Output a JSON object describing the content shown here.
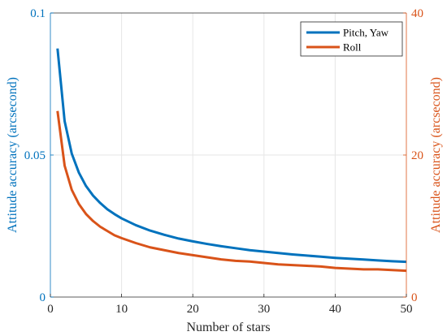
{
  "chart_data": {
    "type": "line",
    "xlabel": "Number of stars",
    "ylabel_left": "Attitude accuracy (arcsecond)",
    "ylabel_right": "Attitude accuracy (arcsecond)",
    "xlim": [
      0,
      50
    ],
    "ylim_left": [
      0,
      0.1
    ],
    "ylim_right": [
      0,
      40
    ],
    "x_ticks": [
      "0",
      "10",
      "20",
      "30",
      "40",
      "50"
    ],
    "y_left_ticks": [
      "0",
      "0.05",
      "0.1"
    ],
    "y_right_ticks": [
      "0",
      "20",
      "40"
    ],
    "grid": true,
    "legend_position": "top-right",
    "colors": {
      "left_axis": "#0072BD",
      "right_axis": "#D95319"
    },
    "series": [
      {
        "name": "Pitch, Yaw",
        "axis": "left",
        "color": "#0072BD",
        "x": [
          1,
          2,
          3,
          4,
          5,
          6,
          7,
          8,
          9,
          10,
          12,
          14,
          16,
          18,
          20,
          22,
          24,
          26,
          28,
          30,
          32,
          34,
          36,
          38,
          40,
          42,
          44,
          46,
          48,
          50
        ],
        "y": [
          0.0875,
          0.0619,
          0.0505,
          0.0438,
          0.0391,
          0.0357,
          0.0331,
          0.0309,
          0.0292,
          0.0277,
          0.0253,
          0.0234,
          0.0219,
          0.0206,
          0.0196,
          0.0187,
          0.0179,
          0.0172,
          0.0165,
          0.016,
          0.0155,
          0.015,
          0.0146,
          0.0142,
          0.0138,
          0.0135,
          0.0132,
          0.0129,
          0.0126,
          0.0124
        ]
      },
      {
        "name": "Roll",
        "axis": "right",
        "color": "#D95319",
        "x": [
          1,
          2,
          3,
          4,
          5,
          6,
          7,
          8,
          9,
          10,
          12,
          14,
          16,
          18,
          20,
          22,
          24,
          26,
          28,
          30,
          32,
          34,
          36,
          38,
          40,
          42,
          44,
          46,
          48,
          50
        ],
        "y": [
          26.2,
          18.5,
          15.1,
          13.1,
          11.7,
          10.7,
          9.9,
          9.3,
          8.7,
          8.3,
          7.6,
          7.0,
          6.6,
          6.2,
          5.9,
          5.6,
          5.3,
          5.1,
          5.0,
          4.8,
          4.6,
          4.5,
          4.4,
          4.3,
          4.1,
          4.0,
          3.9,
          3.9,
          3.8,
          3.7
        ]
      }
    ]
  }
}
